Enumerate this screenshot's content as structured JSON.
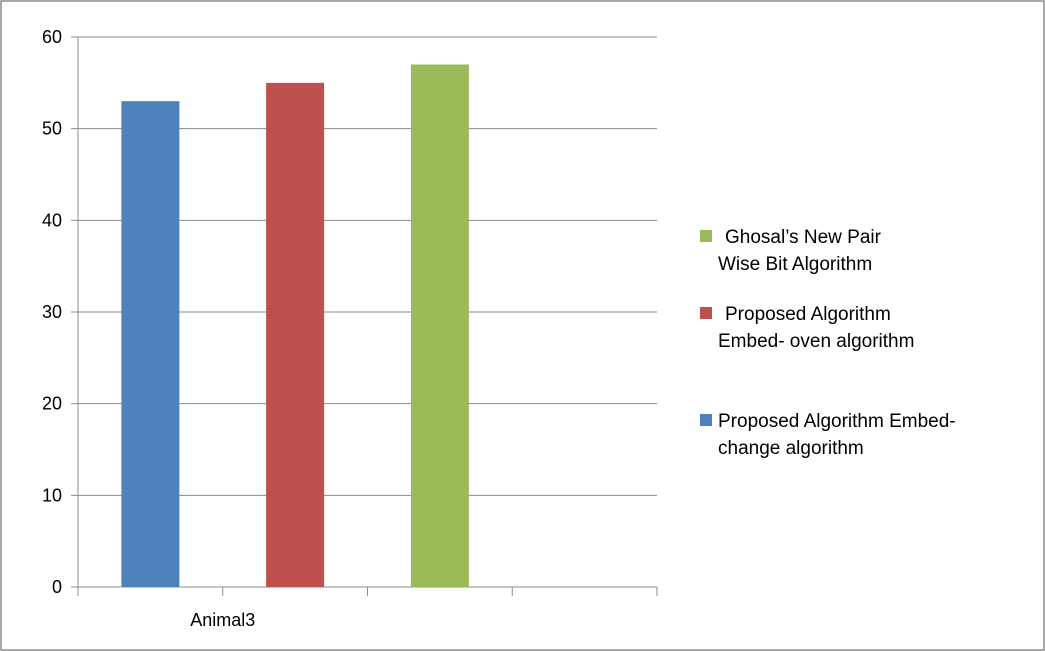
{
  "chart_data": {
    "type": "bar",
    "categories": [
      "Animal3"
    ],
    "series": [
      {
        "name": "Proposed Algorithm Embed- change algorithm",
        "values": [
          53
        ],
        "color": "#4F81BD"
      },
      {
        "name": "Proposed Algorithm Embed- oven algorithm",
        "values": [
          55
        ],
        "color": "#C0504D"
      },
      {
        "name": "Ghosal’s New Pair Wise Bit Algorithm",
        "values": [
          57
        ],
        "color": "#9BBB59"
      }
    ],
    "y_ticks": [
      "0",
      "10",
      "20",
      "30",
      "40",
      "50",
      "60"
    ],
    "ylim": [
      0,
      60
    ],
    "grid": true,
    "legend_position": "right",
    "legend": [
      {
        "line1": "Ghosal’s New Pair",
        "line2": "Wise Bit Algorithm",
        "color": "#9BBB59"
      },
      {
        "line1": "Proposed Algorithm",
        "line2": "Embed- oven algorithm",
        "color": "#C0504D"
      },
      {
        "line1": "Proposed Algorithm Embed-",
        "line2": "change algorithm",
        "color": "#4F81BD"
      }
    ]
  }
}
